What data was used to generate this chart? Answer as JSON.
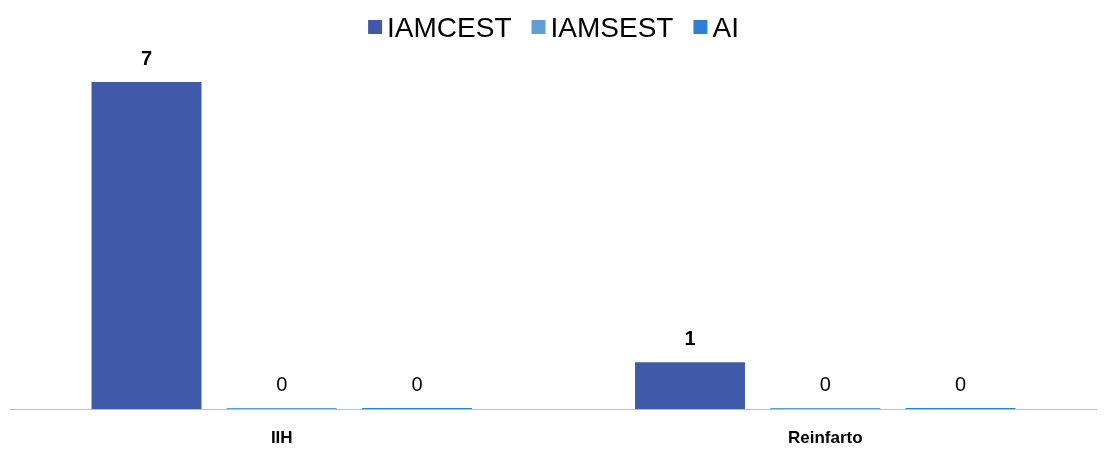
{
  "chart_data": {
    "type": "bar",
    "categories": [
      "IIH",
      "Reinfarto"
    ],
    "series": [
      {
        "name": "IAMCEST",
        "color": "#3f5aa8",
        "values": [
          7,
          1
        ]
      },
      {
        "name": "IAMSEST",
        "color": "#5f9fd6",
        "values": [
          0,
          0
        ]
      },
      {
        "name": "AI",
        "color": "#2e7fd6",
        "values": [
          0,
          0
        ]
      }
    ],
    "data_labels": true,
    "legend": "top"
  }
}
